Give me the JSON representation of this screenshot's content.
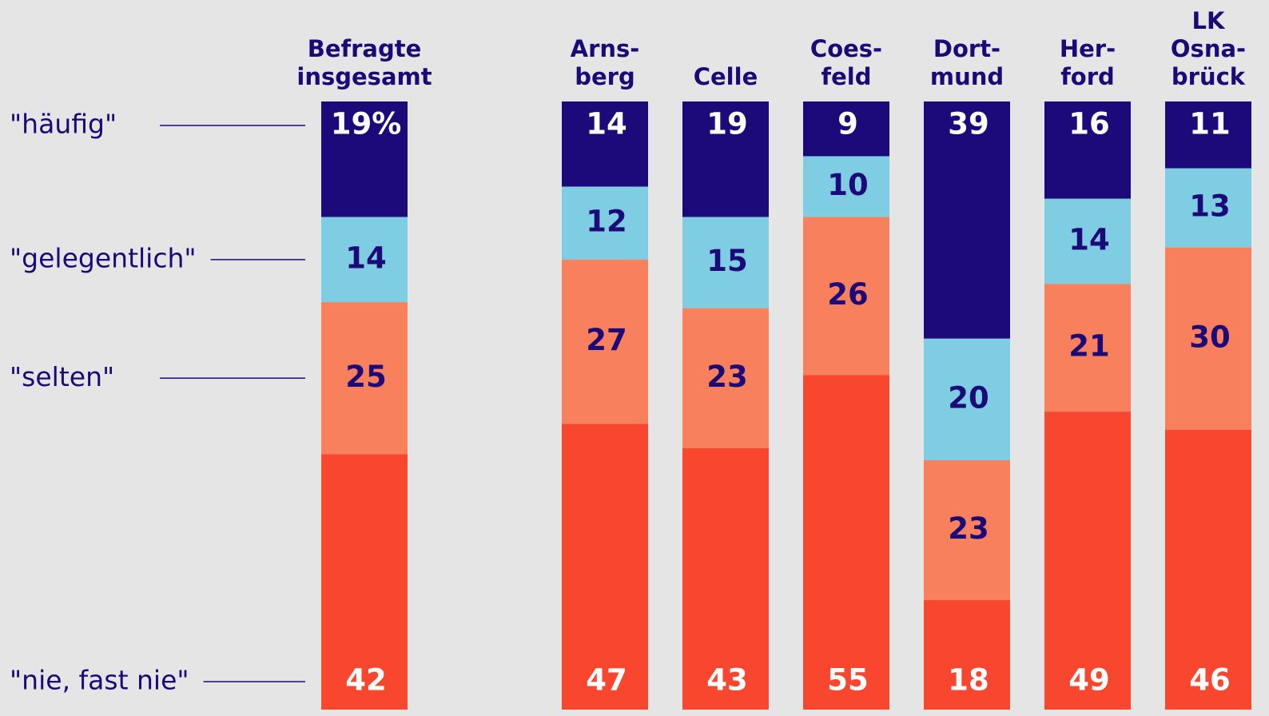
{
  "chart_data": {
    "type": "stacked-bar",
    "categories": [
      [
        "Befragte",
        "insgesamt"
      ],
      [
        "Arns-",
        "berg"
      ],
      [
        "Celle"
      ],
      [
        "Coes-",
        "feld"
      ],
      [
        "Dort-",
        "mund"
      ],
      [
        "Her-",
        "ford"
      ],
      [
        "LK",
        "Osna-",
        "brück"
      ]
    ],
    "ylim": [
      0,
      100
    ],
    "series": [
      {
        "name": "\"häufig\"",
        "color": "#1c0a7a",
        "label_color": "#ffffff",
        "values": [
          19,
          14,
          19,
          9,
          39,
          16,
          11
        ],
        "value_labels": [
          "19%",
          "14",
          "19",
          "9",
          "39",
          "16",
          "11"
        ]
      },
      {
        "name": "\"gelegentlich\"",
        "color": "#7fcde2",
        "label_color": "#1c0a7a",
        "values": [
          14,
          12,
          15,
          10,
          20,
          14,
          13
        ]
      },
      {
        "name": "\"selten\"",
        "color": "#f8805d",
        "label_color": "#1c0a7a",
        "values": [
          25,
          27,
          23,
          26,
          23,
          21,
          30
        ]
      },
      {
        "name": "\"nie, fast nie\"",
        "color": "#f8472e",
        "label_color": "#ffffff",
        "values": [
          42,
          47,
          43,
          55,
          18,
          49,
          46
        ]
      }
    ]
  }
}
